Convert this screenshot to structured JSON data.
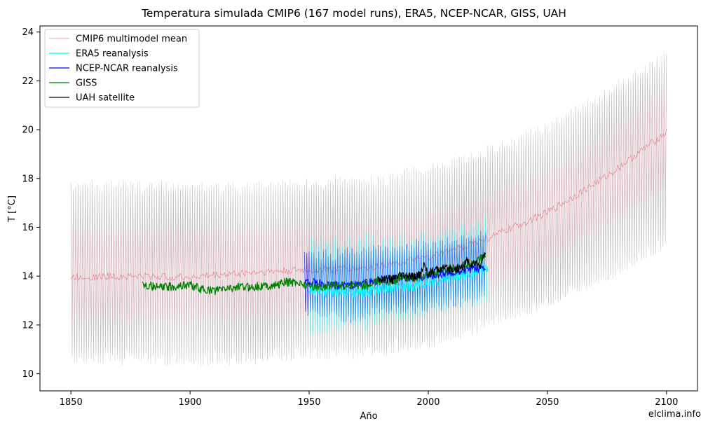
{
  "chart_data": {
    "type": "line",
    "title": "Temperatura simulada CMIP6 (167 model runs), ERA5, NCEP-NCAR, GISS, UAH",
    "xlabel": "Año",
    "ylabel": "T [°C]",
    "xlim": [
      1837,
      2113
    ],
    "ylim": [
      9.3,
      24.25
    ],
    "xticks": [
      1850,
      1900,
      1950,
      2000,
      2050,
      2100
    ],
    "yticks": [
      10,
      12,
      14,
      16,
      18,
      20,
      22,
      24
    ],
    "grid": false,
    "legend_position": "top-left",
    "credit": "elclima.info",
    "colors": {
      "cmip6_runs": "#bdbdbd",
      "cmip6_mean": "#e8b9c4",
      "cmip6_mean_line": "#e78796",
      "era5": "#00ffff",
      "ncep": "#0000ff",
      "giss": "#008000",
      "uah": "#000000"
    },
    "series": [
      {
        "name": "CMIP6 multimodel mean",
        "x": [
          1850,
          1875,
          1900,
          1925,
          1950,
          1975,
          2000,
          2025,
          2050,
          2075,
          2100
        ],
        "y": [
          13.95,
          14.0,
          13.95,
          14.15,
          14.25,
          14.35,
          14.75,
          15.55,
          16.6,
          18.1,
          19.9
        ],
        "seasonal_amplitude_min": [
          12.0,
          12.0,
          12.0,
          12.1,
          12.2,
          12.3,
          12.6,
          13.4,
          14.4,
          15.9,
          17.6
        ],
        "seasonal_amplitude_max": [
          16.0,
          16.0,
          16.0,
          16.1,
          16.2,
          16.3,
          16.6,
          17.4,
          18.4,
          19.9,
          21.9
        ]
      },
      {
        "name": "CMIP6 model runs envelope",
        "x": [
          1850,
          1875,
          1900,
          1925,
          1950,
          1975,
          2000,
          2025,
          2050,
          2075,
          2100
        ],
        "low": [
          10.3,
          10.3,
          10.2,
          10.3,
          10.5,
          10.6,
          10.9,
          11.7,
          12.6,
          13.7,
          15.0
        ],
        "high": [
          18.0,
          18.0,
          17.9,
          18.0,
          18.1,
          18.2,
          18.6,
          19.4,
          20.4,
          21.8,
          23.4
        ]
      },
      {
        "name": "ERA5 reanalysis",
        "x": [
          1950,
          1960,
          1970,
          1980,
          1990,
          2000,
          2010,
          2020,
          2025
        ],
        "y": [
          13.35,
          13.35,
          13.3,
          13.45,
          13.55,
          13.75,
          13.95,
          14.15,
          14.3
        ],
        "low": [
          11.3,
          11.6,
          11.5,
          11.7,
          11.9,
          12.0,
          12.2,
          12.4,
          12.5
        ],
        "high": [
          15.9,
          15.8,
          15.8,
          15.9,
          15.9,
          16.1,
          16.3,
          16.5,
          16.7
        ]
      },
      {
        "name": "NCEP-NCAR reanalysis",
        "x": [
          1948,
          1960,
          1970,
          1980,
          1990,
          2000,
          2010,
          2020,
          2024
        ],
        "y": [
          13.8,
          13.6,
          13.65,
          13.85,
          13.9,
          14.0,
          14.15,
          14.3,
          14.4
        ],
        "low": [
          12.2,
          12.0,
          12.0,
          12.2,
          12.3,
          12.4,
          12.5,
          12.7,
          12.8
        ],
        "high": [
          15.3,
          15.2,
          15.3,
          15.5,
          15.5,
          15.6,
          15.8,
          15.9,
          16.0
        ]
      },
      {
        "name": "GISS",
        "x": [
          1880,
          1885,
          1890,
          1895,
          1900,
          1905,
          1910,
          1915,
          1920,
          1925,
          1930,
          1935,
          1940,
          1945,
          1950,
          1955,
          1960,
          1965,
          1970,
          1975,
          1980,
          1985,
          1990,
          1995,
          2000,
          2005,
          2010,
          2015,
          2020,
          2024
        ],
        "y": [
          13.7,
          13.55,
          13.55,
          13.6,
          13.65,
          13.45,
          13.4,
          13.5,
          13.55,
          13.55,
          13.6,
          13.6,
          13.75,
          13.75,
          13.6,
          13.55,
          13.65,
          13.6,
          13.65,
          13.6,
          13.8,
          13.8,
          13.95,
          13.95,
          14.05,
          14.2,
          14.3,
          14.45,
          14.6,
          14.85
        ]
      },
      {
        "name": "UAH satellite",
        "x": [
          1979,
          1982,
          1985,
          1988,
          1991,
          1994,
          1997,
          1998,
          2000,
          2003,
          2006,
          2009,
          2012,
          2015,
          2016,
          2018,
          2020,
          2022,
          2024
        ],
        "y": [
          13.85,
          13.9,
          13.85,
          14.0,
          14.0,
          13.95,
          14.1,
          14.5,
          14.1,
          14.25,
          14.3,
          14.3,
          14.3,
          14.4,
          14.65,
          14.45,
          14.55,
          14.45,
          14.95
        ]
      }
    ]
  }
}
